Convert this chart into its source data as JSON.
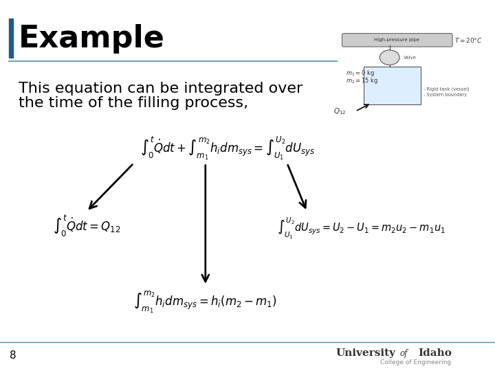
{
  "title": "Example",
  "title_bar_color": "#1F5C8B",
  "background_color": "#FFFFFF",
  "text_color": "#000000",
  "body_text_line1": "This equation can be integrated over",
  "body_text_line2": "the time of the filling process,",
  "body_text_fontsize": 16,
  "title_fontsize": 32,
  "page_number": "8",
  "college_text": "College of Engineering",
  "top_eq": "$\\int_0^t \\dot{Q}dt + \\int_{m_1}^{m_2} h_i dm_{sys} = \\int_{U_1}^{U_2} dU_{sys}$",
  "left_eq": "$\\int_0^t \\dot{Q}dt = Q_{12}$",
  "right_eq": "$\\int_{U_1}^{U_2} dU_{sys} = U_2 - U_1 = m_2 u_2 - m_1 u_1$",
  "bottom_eq": "$\\int_{m_1}^{m_2} h_i dm_{sys} = h_i \\left(m_2 - m_1\\right)$",
  "separator_color": "#4A8CA8",
  "arrow_color": "#000000",
  "pipe_label": "High-pressure pipe",
  "temp_label": "$T = 20°C$",
  "valve_label": "Valve",
  "tank_label1": "$m_1 = 0\\ \\mathrm{kg}$",
  "tank_label2": "$m_2 = 15\\ \\mathrm{kg}$",
  "tank_annot1": "- Rigid tank (vessel)",
  "tank_annot2": "- System boundary",
  "q12_label": "$Q_{12}$"
}
